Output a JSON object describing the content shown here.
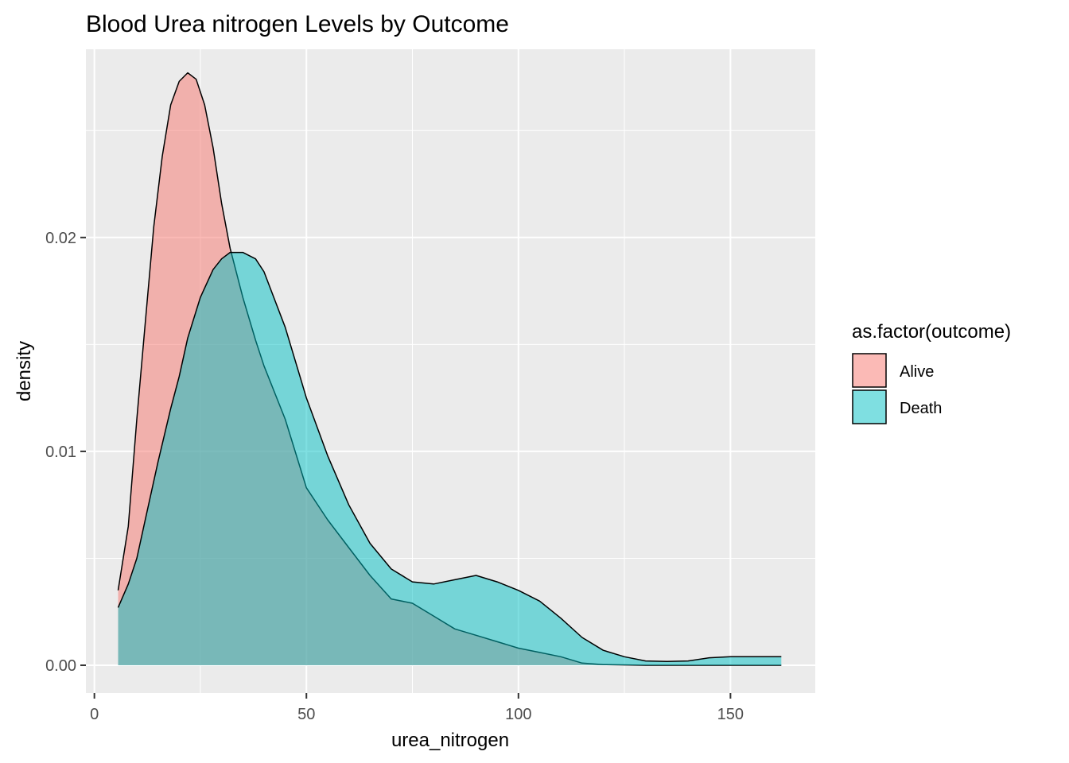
{
  "chart_data": {
    "type": "area",
    "subtype": "density",
    "title": "Blood Urea nitrogen Levels by Outcome",
    "xlabel": "urea_nitrogen",
    "ylabel": "density",
    "xlim": [
      -2,
      170
    ],
    "ylim": [
      -0.0013,
      0.0288
    ],
    "x_ticks": [
      0,
      50,
      100,
      150
    ],
    "x_tick_labels": [
      "0",
      "50",
      "100",
      "150"
    ],
    "y_ticks": [
      0.0,
      0.01,
      0.02
    ],
    "y_tick_labels": [
      "0.00",
      "0.01",
      "0.02"
    ],
    "grid": true,
    "legend": {
      "title": "as.factor(outcome)",
      "position": "right"
    },
    "series": [
      {
        "name": "Alive",
        "color": "#F8766D",
        "opacity": 0.5,
        "x": [
          5.6,
          8,
          10,
          12,
          14,
          16,
          18,
          20,
          22,
          24,
          26,
          28,
          30,
          32,
          35,
          38,
          40,
          45,
          50,
          55,
          60,
          65,
          70,
          75,
          80,
          85,
          90,
          95,
          100,
          105,
          110,
          115,
          120,
          130,
          140,
          150,
          162
        ],
        "y": [
          0.0035,
          0.0065,
          0.0115,
          0.016,
          0.0205,
          0.0238,
          0.0262,
          0.0273,
          0.0277,
          0.0274,
          0.0262,
          0.0242,
          0.0216,
          0.0195,
          0.0172,
          0.0152,
          0.014,
          0.0115,
          0.0083,
          0.0068,
          0.0055,
          0.0042,
          0.0031,
          0.0029,
          0.0023,
          0.0017,
          0.0014,
          0.0011,
          0.0008,
          0.0006,
          0.0004,
          0.0001,
          3e-05,
          0.0,
          0.0,
          0.0,
          0.0
        ]
      },
      {
        "name": "Death",
        "color": "#00BFC4",
        "opacity": 0.5,
        "x": [
          5.6,
          8,
          10,
          12,
          15,
          18,
          20,
          22,
          25,
          28,
          30,
          32,
          35,
          38,
          40,
          45,
          50,
          55,
          60,
          65,
          70,
          75,
          80,
          85,
          90,
          95,
          100,
          105,
          110,
          115,
          120,
          125,
          130,
          135,
          140,
          145,
          150,
          162
        ],
        "y": [
          0.0027,
          0.0038,
          0.005,
          0.0068,
          0.0095,
          0.012,
          0.0135,
          0.0153,
          0.0172,
          0.0185,
          0.019,
          0.0193,
          0.0193,
          0.019,
          0.0184,
          0.0158,
          0.0125,
          0.0098,
          0.0075,
          0.0057,
          0.0045,
          0.0039,
          0.0038,
          0.004,
          0.0042,
          0.0039,
          0.0035,
          0.003,
          0.0022,
          0.0013,
          0.0007,
          0.0004,
          0.0002,
          0.00018,
          0.0002,
          0.00035,
          0.0004,
          0.0004
        ]
      }
    ]
  }
}
